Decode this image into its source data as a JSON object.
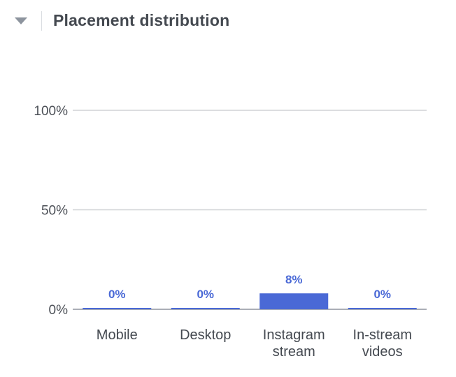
{
  "header": {
    "title": "Placement distribution",
    "collapse_icon": "caret-down-icon"
  },
  "colors": {
    "bar": "#4a69d6",
    "label": "#4a69d6",
    "grid": "#d0d2d6",
    "axis": "#8d949e"
  },
  "chart_data": {
    "type": "bar",
    "title": "Placement distribution",
    "categories": [
      "Mobile",
      "Desktop",
      "Instagram stream",
      "In-stream videos"
    ],
    "category_lines": [
      [
        "Mobile"
      ],
      [
        "Desktop"
      ],
      [
        "Instagram",
        "stream"
      ],
      [
        "In-stream",
        "videos"
      ]
    ],
    "values": [
      0,
      0,
      8,
      0
    ],
    "value_labels": [
      "0%",
      "0%",
      "8%",
      "0%"
    ],
    "yticks": [
      "0%",
      "50%",
      "100%"
    ],
    "ytick_values": [
      0,
      50,
      100
    ],
    "ylim": [
      0,
      100
    ],
    "xlabel": "",
    "ylabel": "",
    "grid": true,
    "legend": "none"
  }
}
